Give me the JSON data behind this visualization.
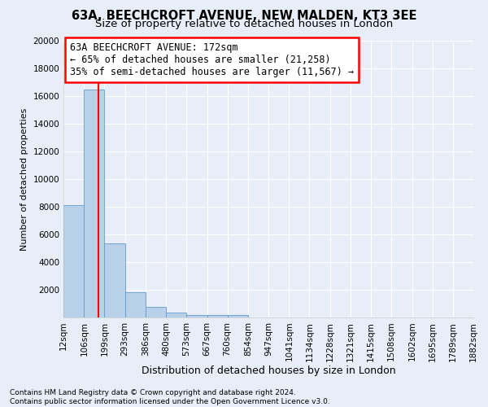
{
  "title": "63A, BEECHCROFT AVENUE, NEW MALDEN, KT3 3EE",
  "subtitle": "Size of property relative to detached houses in London",
  "xlabel": "Distribution of detached houses by size in London",
  "ylabel": "Number of detached properties",
  "bin_labels": [
    "12sqm",
    "106sqm",
    "199sqm",
    "293sqm",
    "386sqm",
    "480sqm",
    "573sqm",
    "667sqm",
    "760sqm",
    "854sqm",
    "947sqm",
    "1041sqm",
    "1134sqm",
    "1228sqm",
    "1321sqm",
    "1415sqm",
    "1508sqm",
    "1602sqm",
    "1695sqm",
    "1789sqm",
    "1882sqm"
  ],
  "bin_edges": [
    12,
    106,
    199,
    293,
    386,
    480,
    573,
    667,
    760,
    854,
    947,
    1041,
    1134,
    1228,
    1321,
    1415,
    1508,
    1602,
    1695,
    1789,
    1882
  ],
  "bar_heights": [
    8100,
    16500,
    5350,
    1850,
    750,
    350,
    200,
    150,
    150,
    0,
    0,
    0,
    0,
    0,
    0,
    0,
    0,
    0,
    0,
    0
  ],
  "bar_color": "#b8d0ea",
  "bar_edgecolor": "#6699cc",
  "red_line_x": 172,
  "annotation_line1": "63A BEECHCROFT AVENUE: 172sqm",
  "annotation_line2": "← 65% of detached houses are smaller (21,258)",
  "annotation_line3": "35% of semi-detached houses are larger (11,567) →",
  "ylim": [
    0,
    20000
  ],
  "yticks": [
    0,
    2000,
    4000,
    6000,
    8000,
    10000,
    12000,
    14000,
    16000,
    18000,
    20000
  ],
  "footnote1": "Contains HM Land Registry data © Crown copyright and database right 2024.",
  "footnote2": "Contains public sector information licensed under the Open Government Licence v3.0.",
  "bg_color": "#e8eef8",
  "grid_color": "#ffffff",
  "title_fontsize": 10.5,
  "subtitle_fontsize": 9.5,
  "annot_fontsize": 8.5,
  "ylabel_fontsize": 8,
  "xlabel_fontsize": 9,
  "tick_fontsize": 7.5,
  "footnote_fontsize": 6.5
}
